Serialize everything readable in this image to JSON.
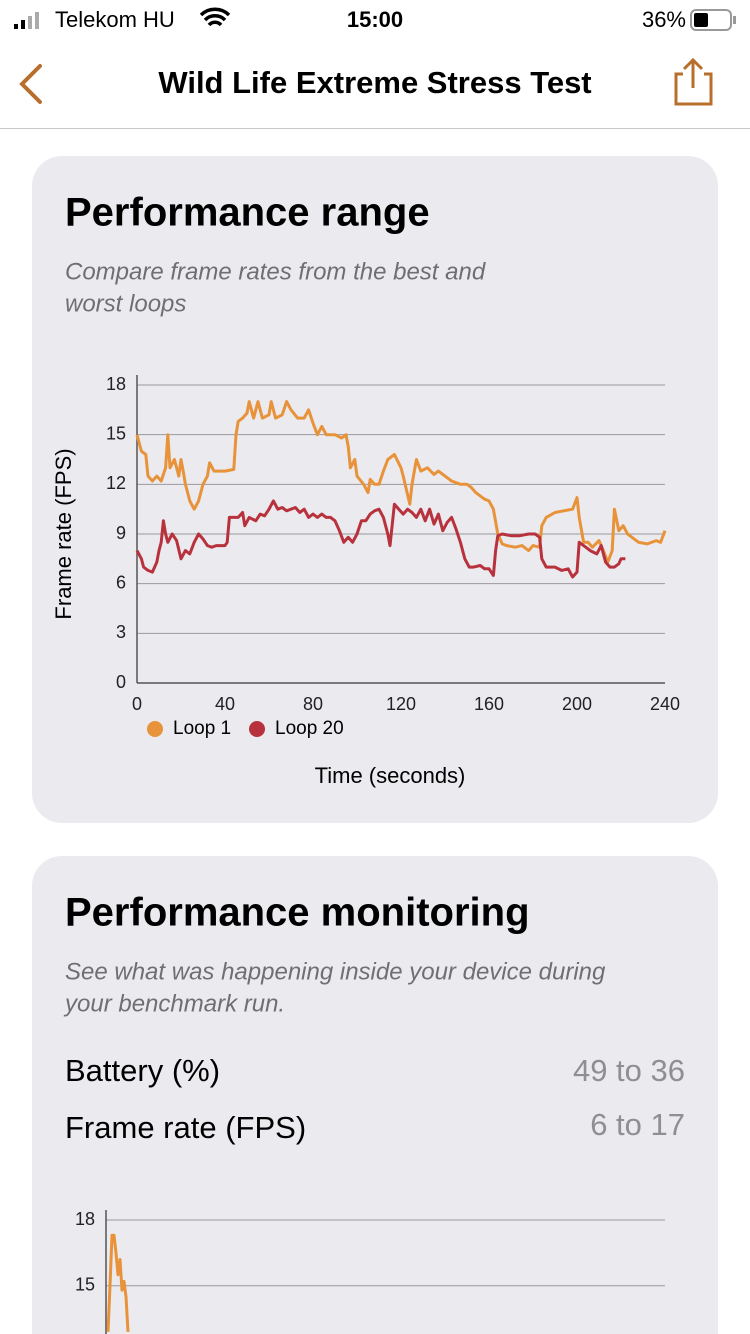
{
  "status_bar": {
    "carrier": "Telekom HU",
    "time": "15:00",
    "battery": "36%"
  },
  "nav": {
    "title": "Wild Life Extreme Stress Test"
  },
  "range_card": {
    "title": "Performance range",
    "subtitle_lines": [
      "Compare frame rates from the best and",
      "worst loops"
    ]
  },
  "monitor_card": {
    "title": "Performance monitoring",
    "subtitle_lines": [
      "See what was happening inside your device during",
      "your benchmark run."
    ],
    "rows": [
      {
        "label": "Battery (%)",
        "value": "49 to 36"
      },
      {
        "label": "Frame rate (FPS)",
        "value": "6 to 17"
      }
    ]
  },
  "chart_data": [
    {
      "type": "line",
      "xlabel": "Time (seconds)",
      "ylabel": "Frame rate (FPS)",
      "xlim": [
        0,
        240
      ],
      "xticks": [
        0,
        40,
        80,
        120,
        160,
        200,
        240
      ],
      "ylim": [
        0,
        18
      ],
      "yticks": [
        0,
        3,
        6,
        9,
        12,
        15,
        18
      ],
      "grid": true,
      "legend": "bottom-left",
      "series": [
        {
          "name": "Loop 1",
          "color": "#e8933a",
          "x": [
            0,
            2,
            4,
            5,
            7,
            9,
            11,
            13,
            14,
            15,
            17,
            19,
            20,
            21,
            22,
            24,
            26,
            28,
            30,
            32,
            33,
            35,
            40,
            44,
            45,
            46,
            48,
            50,
            51,
            53,
            55,
            57,
            60,
            61,
            63,
            66,
            68,
            70,
            73,
            76,
            78,
            80,
            82,
            84,
            86,
            90,
            93,
            95,
            96,
            97,
            99,
            100,
            103,
            105,
            106,
            108,
            110,
            112,
            114,
            117,
            120,
            121,
            124,
            125,
            127,
            129,
            132,
            135,
            137,
            140,
            143,
            147,
            150,
            152,
            154,
            156,
            158,
            160,
            162,
            164,
            166,
            168,
            172,
            175,
            178,
            180,
            183,
            184,
            186,
            190,
            194,
            198,
            200,
            201,
            203,
            205,
            207,
            210,
            212,
            214,
            216,
            217,
            219,
            221,
            223,
            225,
            228,
            232,
            236,
            238,
            240
          ],
          "values": [
            15,
            14,
            13.8,
            12.5,
            12.2,
            12.5,
            12.2,
            13,
            15,
            13,
            13.5,
            12.5,
            13.5,
            12.8,
            12,
            11,
            10.5,
            11,
            12,
            12.5,
            13.3,
            12.8,
            12.8,
            12.9,
            15,
            15.8,
            16,
            16.3,
            17,
            16,
            17,
            16,
            16.2,
            17,
            16,
            16.2,
            17,
            16.5,
            16,
            16,
            16.5,
            15.7,
            15,
            15.5,
            15,
            15,
            14.8,
            15,
            14.3,
            13,
            13.5,
            12.5,
            12,
            11.5,
            12.3,
            12,
            12,
            12.8,
            13.5,
            13.8,
            13,
            12.5,
            10.8,
            12,
            13.5,
            12.8,
            13,
            12.6,
            12.8,
            12.5,
            12.2,
            12,
            12,
            11.8,
            11.5,
            11.3,
            11.1,
            11,
            10.5,
            9,
            8.4,
            8.3,
            8.2,
            8.3,
            8,
            8.3,
            8.2,
            9.5,
            10,
            10.3,
            10.4,
            10.5,
            11.2,
            10,
            8.5,
            8.5,
            8.2,
            8.6,
            8,
            7.3,
            8,
            10.5,
            9.2,
            9.5,
            9,
            8.8,
            8.5,
            8.4,
            8.6,
            8.5,
            9.2
          ]
        },
        {
          "name": "Loop 20",
          "color": "#b8323d",
          "x": [
            0,
            2,
            3,
            5,
            7,
            9,
            10,
            11,
            12,
            13,
            14,
            16,
            18,
            20,
            22,
            24,
            26,
            28,
            30,
            32,
            34,
            36,
            40,
            41,
            42,
            44,
            46,
            48,
            49,
            51,
            54,
            56,
            58,
            60,
            62,
            64,
            66,
            68,
            70,
            72,
            74,
            76,
            78,
            80,
            82,
            84,
            86,
            88,
            90,
            92,
            94,
            96,
            98,
            100,
            102,
            104,
            106,
            108,
            110,
            112,
            114,
            115,
            117,
            119,
            121,
            123,
            125,
            127,
            129,
            131,
            133,
            135,
            137,
            139,
            141,
            143,
            145,
            147,
            149,
            151,
            153,
            156,
            158,
            160,
            162,
            163,
            164,
            166,
            170,
            174,
            178,
            181,
            183,
            184,
            186,
            190,
            193,
            196,
            198,
            200,
            201,
            203,
            206,
            209,
            211,
            213,
            215,
            217,
            219,
            220,
            222
          ],
          "values": [
            8,
            7.5,
            7,
            6.8,
            6.7,
            7.3,
            8,
            8.5,
            9.8,
            9,
            8.5,
            9,
            8.6,
            7.5,
            8,
            7.8,
            8.5,
            9,
            8.7,
            8.3,
            8.2,
            8.3,
            8.3,
            8.5,
            10,
            10,
            10,
            10.3,
            9.5,
            10,
            9.8,
            10.2,
            10.1,
            10.5,
            11,
            10.5,
            10.6,
            10.4,
            10.5,
            10.6,
            10.3,
            10.5,
            10,
            10.2,
            10,
            10.2,
            10,
            10,
            9.8,
            9.2,
            8.5,
            8.8,
            8.5,
            9,
            9.8,
            9.8,
            10.2,
            10.4,
            10.5,
            10,
            9,
            8.3,
            10.8,
            10.5,
            10.2,
            10.5,
            10.3,
            10,
            10.5,
            9.8,
            10.5,
            9.6,
            10.2,
            9.2,
            9.7,
            10,
            9.3,
            8.5,
            7.5,
            7,
            7,
            7.1,
            6.9,
            6.9,
            6.5,
            8,
            8.9,
            9,
            8.9,
            8.9,
            9,
            9,
            8.8,
            7.5,
            7,
            7,
            6.8,
            6.9,
            6.4,
            6.7,
            8.5,
            8.3,
            8,
            7.8,
            8.3,
            7.3,
            7,
            7,
            7.2,
            7.5,
            7.5
          ]
        }
      ]
    },
    {
      "type": "line",
      "ylim": [
        12.8,
        18
      ],
      "yticks": [
        15,
        18
      ],
      "grid": true,
      "series": [
        {
          "color": "#e8933a",
          "values": [
            12.9,
            15,
            17.3,
            17.3,
            16.5,
            15.5,
            16.2,
            14.8,
            15.2,
            14.5,
            12.9
          ]
        }
      ]
    }
  ]
}
